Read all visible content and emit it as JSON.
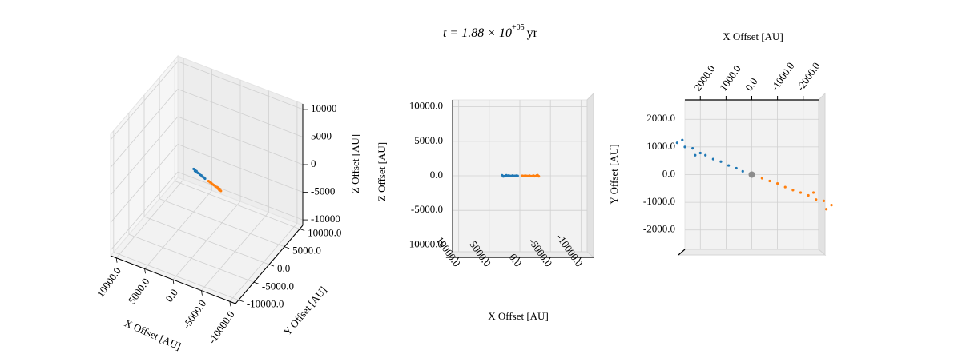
{
  "title": {
    "base": "t = 1.88 × 10",
    "exponent": "+05",
    "unit": "yr"
  },
  "chart_data": [
    {
      "type": "scatter3d",
      "xlabel": "X Offset [AU]",
      "ylabel": "Y Offset [AU]",
      "zlabel": "Z Offset [AU]",
      "xlim": [
        -11000,
        11000
      ],
      "ylim": [
        -11000,
        11000
      ],
      "zlim": [
        -11000,
        11000
      ],
      "xticks": [
        {
          "value": 10000,
          "label": "10000.0"
        },
        {
          "value": 5000,
          "label": "5000.0"
        },
        {
          "value": 0,
          "label": "0.0"
        },
        {
          "value": -5000,
          "label": "-5000.0"
        },
        {
          "value": -10000,
          "label": "-10000.0"
        }
      ],
      "yticks": [
        {
          "value": 10000,
          "label": "10000.0"
        },
        {
          "value": 5000,
          "label": "5000.0"
        },
        {
          "value": 0,
          "label": "0.0"
        },
        {
          "value": -5000,
          "label": "-5000.0"
        },
        {
          "value": -10000,
          "label": "-10000.0"
        }
      ],
      "zticks": [
        10000,
        5000,
        0,
        -5000,
        -10000
      ],
      "series": [
        {
          "color": "#1f77b4",
          "x": [
            2900,
            2600,
            2300,
            2000,
            1800,
            1500,
            1200,
            900,
            600,
            350,
            2700,
            2200
          ],
          "y": [
            1150,
            1000,
            950,
            780,
            700,
            560,
            470,
            330,
            230,
            120,
            1250,
            700
          ],
          "z": [
            80,
            -60,
            40,
            -30,
            50,
            -20,
            30,
            -10,
            15,
            -5,
            -90,
            70
          ]
        },
        {
          "color": "#ff7f0e",
          "x": [
            -3100,
            -2800,
            -2500,
            -2200,
            -1900,
            -1600,
            -1300,
            -1000,
            -700,
            -400,
            -2900,
            -2400
          ],
          "y": [
            -1100,
            -950,
            -900,
            -750,
            -650,
            -560,
            -450,
            -320,
            -230,
            -130,
            -1250,
            -650
          ],
          "z": [
            -70,
            60,
            -40,
            30,
            -50,
            20,
            -30,
            10,
            -15,
            5,
            90,
            -60
          ]
        }
      ]
    },
    {
      "type": "xz",
      "xlabel": "X Offset [AU]",
      "zlabel": "Z Offset [AU]",
      "xlim": [
        11000,
        -11000
      ],
      "zlim": [
        -11000,
        11000
      ],
      "xticks": [
        {
          "value": 10000,
          "label": "10000.0"
        },
        {
          "value": 5000,
          "label": "5000.0"
        },
        {
          "value": 0,
          "label": "0.0"
        },
        {
          "value": -5000,
          "label": "-5000.0"
        },
        {
          "value": -10000,
          "label": "-10000.0"
        }
      ],
      "zticks": [
        {
          "value": 10000,
          "label": "10000.0"
        },
        {
          "value": 5000,
          "label": "5000.0"
        },
        {
          "value": 0,
          "label": "0.0"
        },
        {
          "value": -5000,
          "label": "-5000.0"
        },
        {
          "value": -10000,
          "label": "-10000.0"
        }
      ],
      "series": [
        {
          "color": "#1f77b4",
          "x": [
            2900,
            2600,
            2300,
            2000,
            1800,
            1500,
            1200,
            900,
            600,
            350,
            2700,
            2200
          ],
          "z": [
            80,
            -60,
            40,
            -30,
            50,
            -20,
            30,
            -10,
            15,
            -5,
            -90,
            70
          ]
        },
        {
          "color": "#ff7f0e",
          "x": [
            -3100,
            -2800,
            -2500,
            -2200,
            -1900,
            -1600,
            -1300,
            -1000,
            -700,
            -400,
            -2900,
            -2400
          ],
          "z": [
            -70,
            60,
            -40,
            30,
            -50,
            20,
            -30,
            10,
            -15,
            5,
            90,
            -60
          ]
        }
      ]
    },
    {
      "type": "xy",
      "xlabel": "X Offset [AU]",
      "ylabel": "Y Offset [AU]",
      "xlim": [
        2600,
        -2600
      ],
      "ylim": [
        -2700,
        2700
      ],
      "xticks": [
        {
          "value": 2000,
          "label": "2000.0"
        },
        {
          "value": 1000,
          "label": "1000.0"
        },
        {
          "value": 0,
          "label": "0.0"
        },
        {
          "value": -1000,
          "label": "-1000.0"
        },
        {
          "value": -2000,
          "label": "-2000.0"
        }
      ],
      "yticks": [
        {
          "value": 2000,
          "label": "2000.0"
        },
        {
          "value": 1000,
          "label": "1000.0"
        },
        {
          "value": 0,
          "label": "0.0"
        },
        {
          "value": -1000,
          "label": "-1000.0"
        },
        {
          "value": -2000,
          "label": "-2000.0"
        }
      ],
      "series": [
        {
          "color": "#1f77b4",
          "x": [
            2900,
            2600,
            2300,
            2000,
            1800,
            1500,
            1200,
            900,
            600,
            350,
            2700,
            2200
          ],
          "y": [
            1150,
            1000,
            950,
            780,
            700,
            560,
            470,
            330,
            230,
            120,
            1250,
            700
          ]
        },
        {
          "color": "#ff7f0e",
          "x": [
            -3100,
            -2800,
            -2500,
            -2200,
            -1900,
            -1600,
            -1300,
            -1000,
            -700,
            -400,
            -2900,
            -2400
          ],
          "y": [
            -1100,
            -950,
            -900,
            -750,
            -650,
            -560,
            -450,
            -320,
            -230,
            -130,
            -1250,
            -650
          ]
        },
        {
          "color": "#8c8c8c",
          "x": [
            0
          ],
          "y": [
            0
          ]
        }
      ]
    }
  ]
}
